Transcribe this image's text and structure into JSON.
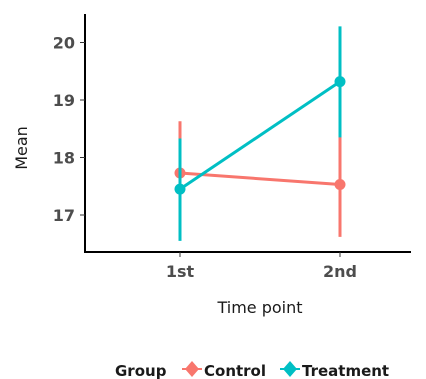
{
  "chart_data": {
    "type": "line",
    "title": "",
    "xlabel": "Time point",
    "ylabel": "Mean",
    "categories": [
      "1st",
      "2nd"
    ],
    "y_ticks": [
      "17",
      "18",
      "19",
      "20"
    ],
    "ylim": [
      16.3,
      20.5
    ],
    "grid": false,
    "legend": {
      "title": "Group",
      "placement": "bottom"
    },
    "series": [
      {
        "name": "Control",
        "color": "#F8766D",
        "values": [
          17.73,
          17.53
        ],
        "error_low": [
          16.85,
          16.62
        ],
        "error_high": [
          18.63,
          18.43
        ]
      },
      {
        "name": "Treatment",
        "color": "#00BFC4",
        "values": [
          17.45,
          19.32
        ],
        "error_low": [
          16.55,
          18.35
        ],
        "error_high": [
          18.33,
          20.28
        ]
      }
    ]
  }
}
